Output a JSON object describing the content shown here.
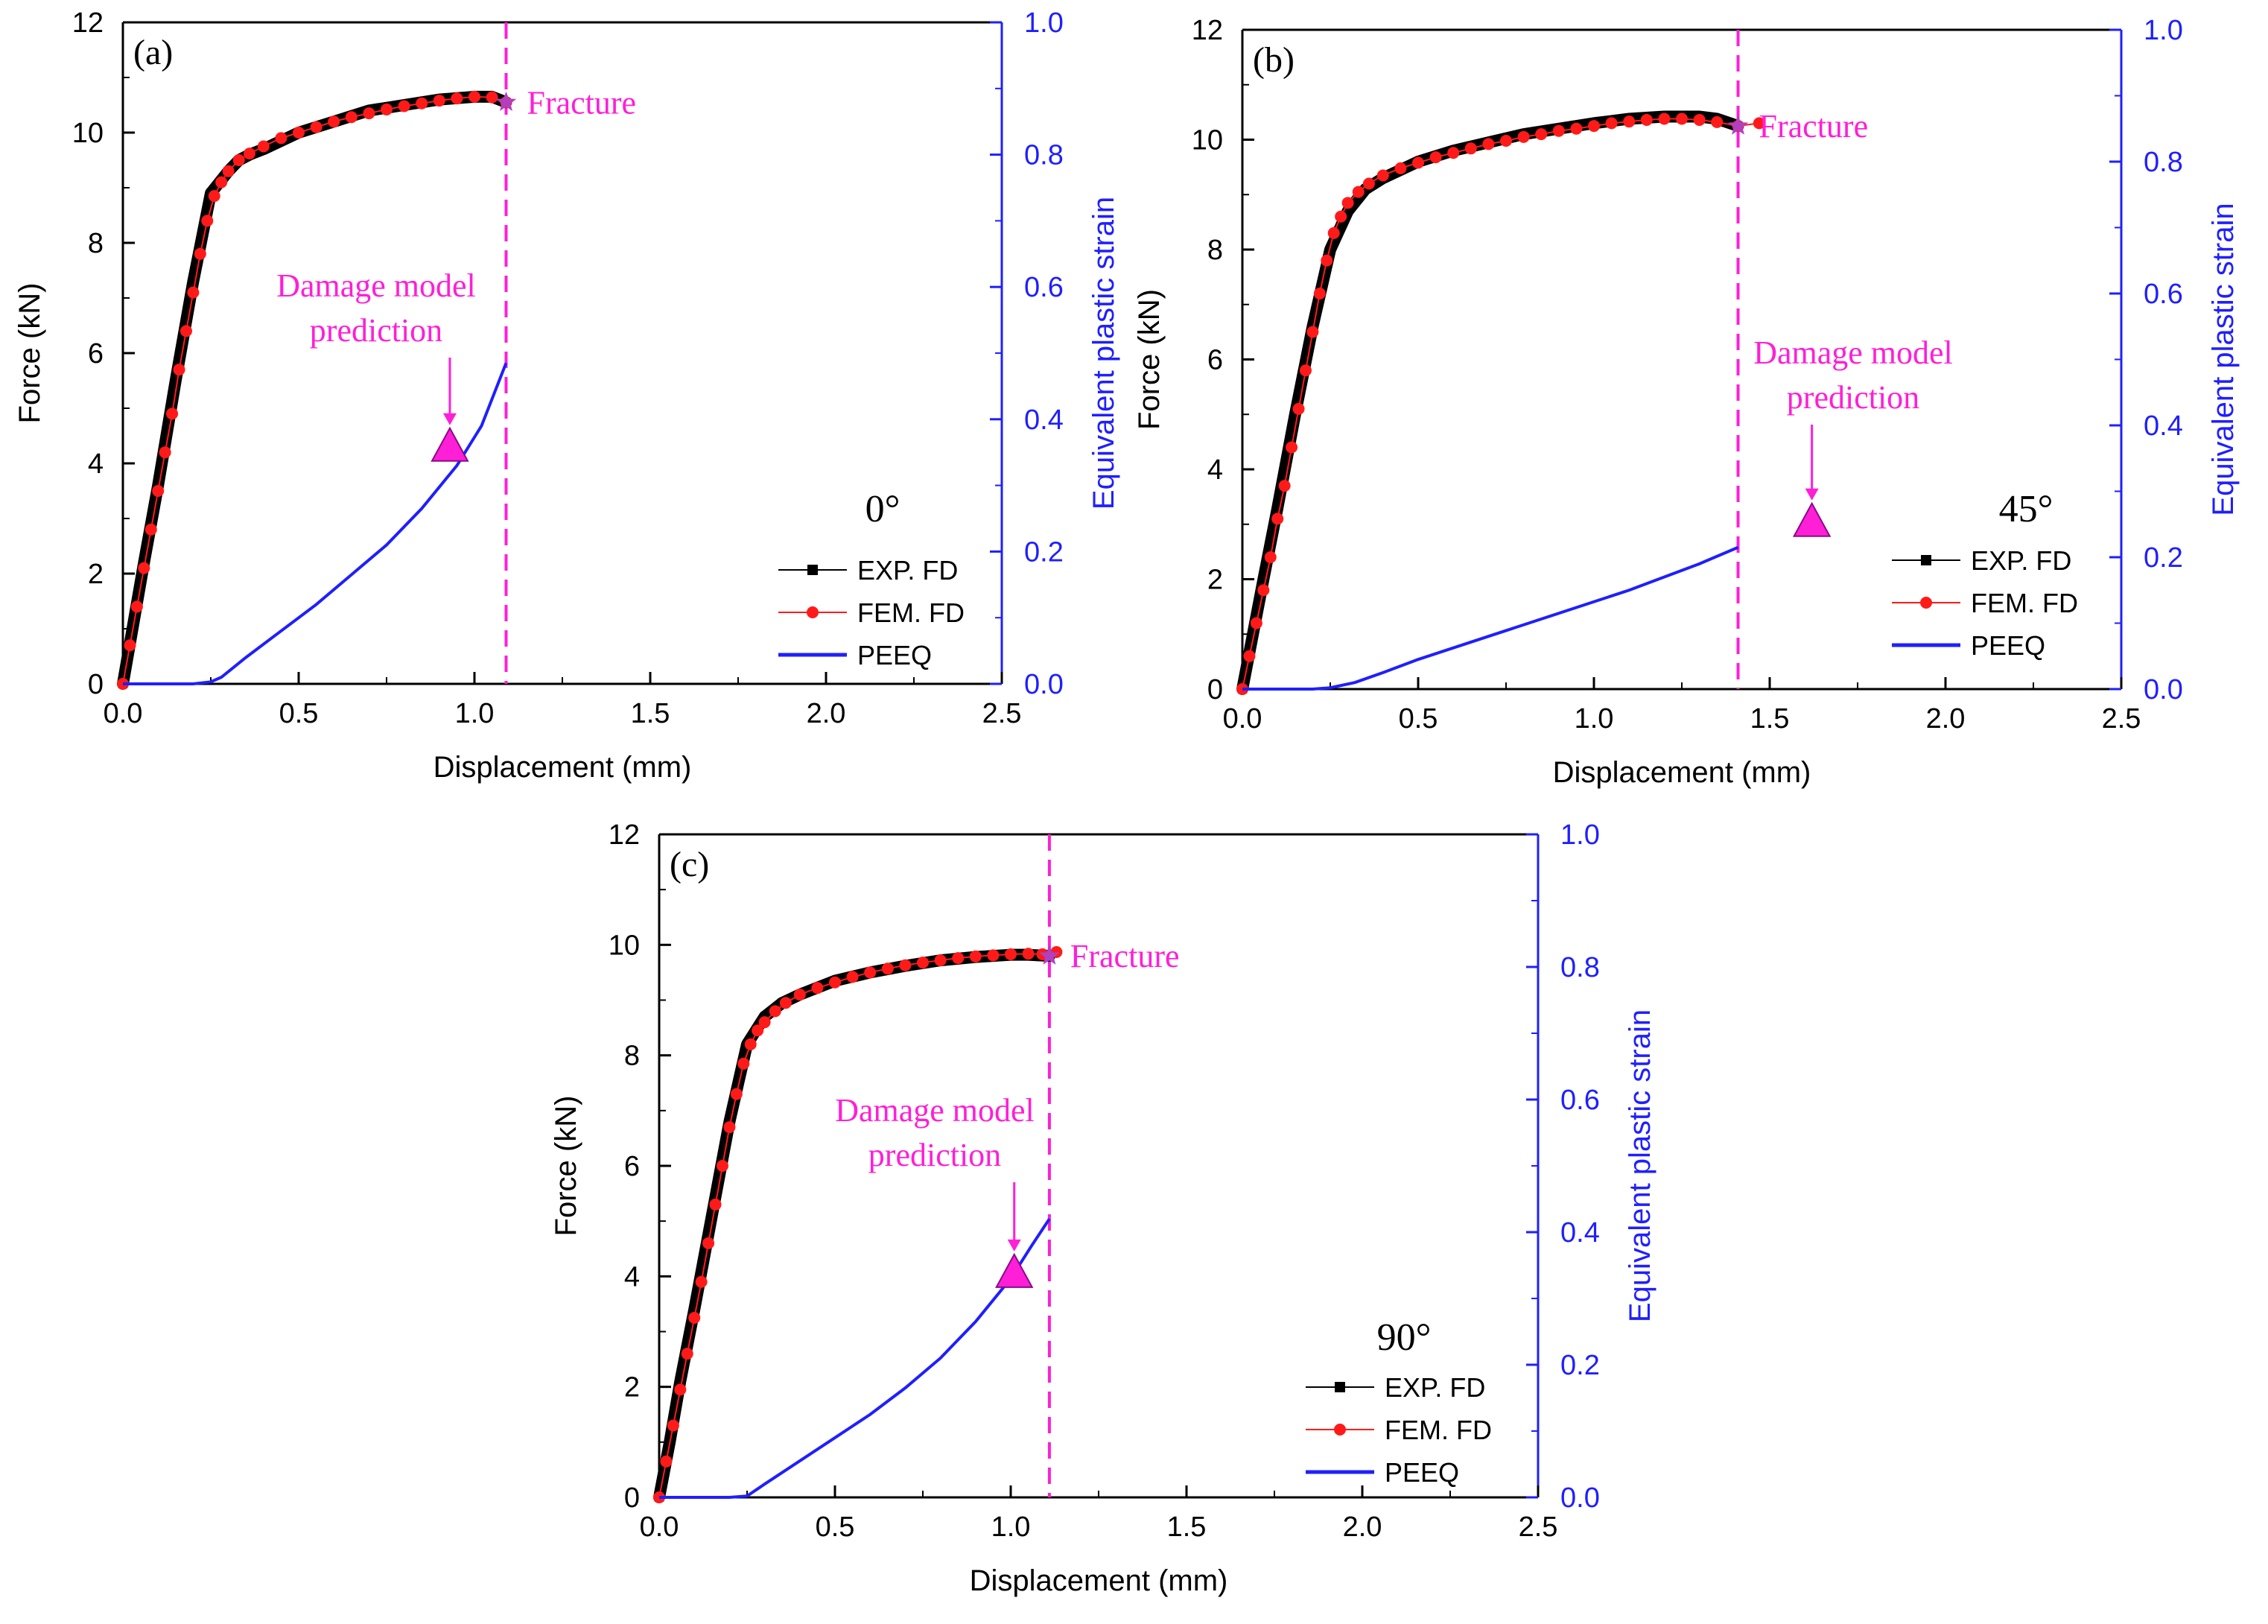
{
  "figure": {
    "colors": {
      "exp": "#000000",
      "fem": "#ff1a1a",
      "peeq": "#1f1fff",
      "annotation": "#ff1fd6",
      "axis": "#000000"
    }
  },
  "chart_data": [
    {
      "type": "line",
      "panel_label": "(a)",
      "angle_label": "0°",
      "xlabel": "Displacement (mm)",
      "ylabel": "Force (kN)",
      "y2label": "Equivalent plastic strain",
      "xlim": [
        0,
        2.5
      ],
      "ylim": [
        0,
        12
      ],
      "y2lim": [
        0,
        1.0
      ],
      "xticks": [
        "0.0",
        "0.5",
        "1.0",
        "1.5",
        "2.0",
        "2.5"
      ],
      "yticks": [
        "0",
        "2",
        "4",
        "6",
        "8",
        "10",
        "12"
      ],
      "y2ticks": [
        "0.0",
        "0.2",
        "0.4",
        "0.6",
        "0.8",
        "1.0"
      ],
      "fracture_label": "Fracture",
      "fracture_x": 1.09,
      "fracture_point": [
        1.09,
        10.55
      ],
      "damage_label_line1": "Damage model",
      "damage_label_line2": "prediction",
      "damage_point": [
        0.93,
        0.355
      ],
      "legend": [
        "EXP. FD",
        "FEM. FD",
        "PEEQ"
      ],
      "series": [
        {
          "name": "EXP. FD",
          "x": [
            0,
            0.03,
            0.06,
            0.1,
            0.15,
            0.2,
            0.25,
            0.3,
            0.33,
            0.36,
            0.4,
            0.45,
            0.5,
            0.6,
            0.7,
            0.8,
            0.9,
            1.0,
            1.05,
            1.09
          ],
          "y": [
            0,
            1.1,
            2.2,
            3.6,
            5.5,
            7.3,
            8.9,
            9.3,
            9.5,
            9.6,
            9.7,
            9.85,
            10.0,
            10.2,
            10.4,
            10.5,
            10.6,
            10.65,
            10.65,
            10.55
          ]
        },
        {
          "name": "FEM. FD",
          "x": [
            0,
            0.02,
            0.04,
            0.06,
            0.08,
            0.1,
            0.12,
            0.14,
            0.16,
            0.18,
            0.2,
            0.22,
            0.24,
            0.26,
            0.28,
            0.3,
            0.33,
            0.36,
            0.4,
            0.45,
            0.5,
            0.55,
            0.6,
            0.65,
            0.7,
            0.75,
            0.8,
            0.85,
            0.9,
            0.95,
            1.0,
            1.05,
            1.09
          ],
          "y": [
            0,
            0.7,
            1.4,
            2.1,
            2.8,
            3.5,
            4.2,
            4.9,
            5.7,
            6.4,
            7.1,
            7.8,
            8.4,
            8.85,
            9.1,
            9.3,
            9.5,
            9.62,
            9.75,
            9.9,
            10.0,
            10.1,
            10.2,
            10.28,
            10.35,
            10.42,
            10.48,
            10.53,
            10.58,
            10.62,
            10.65,
            10.64,
            10.55
          ]
        },
        {
          "name": "PEEQ",
          "axis": "right",
          "x": [
            0,
            0.2,
            0.25,
            0.28,
            0.35,
            0.45,
            0.55,
            0.65,
            0.75,
            0.85,
            0.95,
            1.02,
            1.09
          ],
          "y": [
            0,
            0,
            0.003,
            0.01,
            0.04,
            0.08,
            0.12,
            0.165,
            0.21,
            0.265,
            0.33,
            0.39,
            0.485
          ]
        }
      ]
    },
    {
      "type": "line",
      "panel_label": "(b)",
      "angle_label": "45°",
      "xlabel": "Displacement (mm)",
      "ylabel": "Force (kN)",
      "y2label": "Equivalent plastic strain",
      "xlim": [
        0,
        2.5
      ],
      "ylim": [
        0,
        12
      ],
      "y2lim": [
        0,
        1.0
      ],
      "xticks": [
        "0.0",
        "0.5",
        "1.0",
        "1.5",
        "2.0",
        "2.5"
      ],
      "yticks": [
        "0",
        "2",
        "4",
        "6",
        "8",
        "10",
        "12"
      ],
      "y2ticks": [
        "0.0",
        "0.2",
        "0.4",
        "0.6",
        "0.8",
        "1.0"
      ],
      "fracture_label": "Fracture",
      "fracture_x": 1.41,
      "fracture_point": [
        1.41,
        10.25
      ],
      "damage_label_line1": "Damage model",
      "damage_label_line2": "prediction",
      "damage_point": [
        1.62,
        0.25
      ],
      "legend": [
        "EXP. FD",
        "FEM. FD",
        "PEEQ"
      ],
      "series": [
        {
          "name": "EXP. FD",
          "x": [
            0,
            0.03,
            0.06,
            0.1,
            0.15,
            0.2,
            0.25,
            0.3,
            0.35,
            0.4,
            0.5,
            0.6,
            0.7,
            0.8,
            0.9,
            1.0,
            1.1,
            1.2,
            1.3,
            1.35,
            1.41
          ],
          "y": [
            0,
            1.0,
            2.0,
            3.3,
            5.0,
            6.6,
            8.0,
            8.7,
            9.1,
            9.3,
            9.6,
            9.8,
            9.95,
            10.1,
            10.2,
            10.3,
            10.38,
            10.42,
            10.42,
            10.38,
            10.25
          ]
        },
        {
          "name": "FEM. FD",
          "x": [
            0,
            0.02,
            0.04,
            0.06,
            0.08,
            0.1,
            0.12,
            0.14,
            0.16,
            0.18,
            0.2,
            0.22,
            0.24,
            0.26,
            0.28,
            0.3,
            0.33,
            0.36,
            0.4,
            0.45,
            0.5,
            0.55,
            0.6,
            0.65,
            0.7,
            0.75,
            0.8,
            0.85,
            0.9,
            0.95,
            1.0,
            1.05,
            1.1,
            1.15,
            1.2,
            1.25,
            1.3,
            1.35,
            1.41,
            1.47
          ],
          "y": [
            0,
            0.6,
            1.2,
            1.8,
            2.4,
            3.1,
            3.7,
            4.4,
            5.1,
            5.8,
            6.5,
            7.2,
            7.8,
            8.3,
            8.6,
            8.85,
            9.05,
            9.2,
            9.35,
            9.48,
            9.58,
            9.68,
            9.76,
            9.84,
            9.92,
            9.98,
            10.05,
            10.1,
            10.16,
            10.2,
            10.25,
            10.3,
            10.33,
            10.36,
            10.38,
            10.38,
            10.36,
            10.32,
            10.25,
            10.3
          ]
        },
        {
          "name": "PEEQ",
          "axis": "right",
          "x": [
            0,
            0.2,
            0.25,
            0.32,
            0.4,
            0.5,
            0.7,
            0.9,
            1.1,
            1.3,
            1.41
          ],
          "y": [
            0,
            0,
            0.002,
            0.01,
            0.025,
            0.045,
            0.08,
            0.115,
            0.15,
            0.19,
            0.215
          ]
        }
      ]
    },
    {
      "type": "line",
      "panel_label": "(c)",
      "angle_label": "90°",
      "xlabel": "Displacement (mm)",
      "ylabel": "Force (kN)",
      "y2label": "Equivalent plastic strain",
      "xlim": [
        0,
        2.5
      ],
      "ylim": [
        0,
        12
      ],
      "y2lim": [
        0,
        1.0
      ],
      "xticks": [
        "0.0",
        "0.5",
        "1.0",
        "1.5",
        "2.0",
        "2.5"
      ],
      "yticks": [
        "0",
        "2",
        "4",
        "6",
        "8",
        "10",
        "12"
      ],
      "y2ticks": [
        "0.0",
        "0.2",
        "0.4",
        "0.6",
        "0.8",
        "1.0"
      ],
      "fracture_label": "Fracture",
      "fracture_x": 1.11,
      "fracture_point": [
        1.11,
        9.8
      ],
      "damage_label_line1": "Damage model",
      "damage_label_line2": "prediction",
      "damage_point": [
        1.01,
        0.335
      ],
      "legend": [
        "EXP. FD",
        "FEM. FD",
        "PEEQ"
      ],
      "series": [
        {
          "name": "EXP. FD",
          "x": [
            0,
            0.03,
            0.06,
            0.1,
            0.15,
            0.2,
            0.25,
            0.3,
            0.35,
            0.4,
            0.5,
            0.6,
            0.7,
            0.8,
            0.9,
            1.0,
            1.05,
            1.11
          ],
          "y": [
            0,
            1.0,
            2.1,
            3.4,
            5.1,
            6.8,
            8.2,
            8.7,
            8.95,
            9.1,
            9.35,
            9.5,
            9.62,
            9.72,
            9.78,
            9.82,
            9.82,
            9.8
          ]
        },
        {
          "name": "FEM. FD",
          "x": [
            0,
            0.02,
            0.04,
            0.06,
            0.08,
            0.1,
            0.12,
            0.14,
            0.16,
            0.18,
            0.2,
            0.22,
            0.24,
            0.26,
            0.28,
            0.3,
            0.33,
            0.36,
            0.4,
            0.45,
            0.5,
            0.55,
            0.6,
            0.65,
            0.7,
            0.75,
            0.8,
            0.85,
            0.9,
            0.95,
            1.0,
            1.05,
            1.09,
            1.13
          ],
          "y": [
            0,
            0.65,
            1.3,
            1.95,
            2.6,
            3.25,
            3.9,
            4.6,
            5.3,
            6.0,
            6.7,
            7.3,
            7.85,
            8.2,
            8.45,
            8.6,
            8.8,
            8.95,
            9.1,
            9.22,
            9.32,
            9.42,
            9.5,
            9.57,
            9.63,
            9.68,
            9.72,
            9.76,
            9.79,
            9.81,
            9.83,
            9.84,
            9.83,
            9.87
          ]
        },
        {
          "name": "PEEQ",
          "axis": "right",
          "x": [
            0,
            0.2,
            0.25,
            0.3,
            0.4,
            0.5,
            0.6,
            0.7,
            0.8,
            0.9,
            1.0,
            1.06,
            1.11
          ],
          "y": [
            0,
            0,
            0.002,
            0.02,
            0.055,
            0.09,
            0.125,
            0.165,
            0.21,
            0.265,
            0.33,
            0.38,
            0.42
          ]
        }
      ]
    }
  ]
}
